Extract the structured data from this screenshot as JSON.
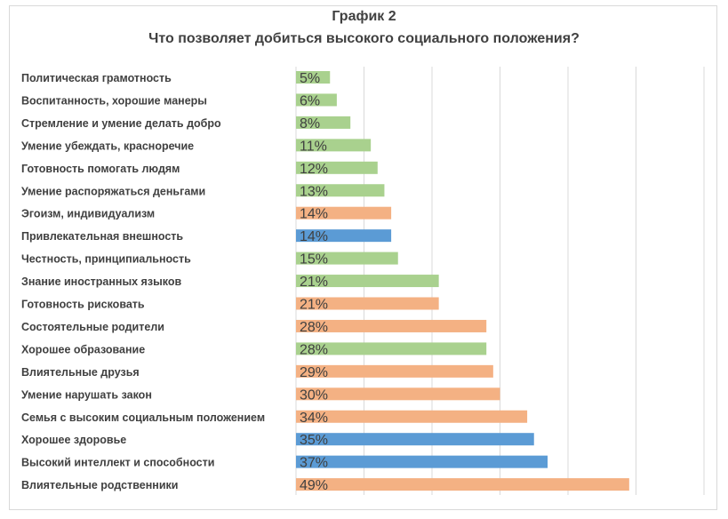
{
  "chart_data": {
    "type": "bar",
    "orientation": "horizontal",
    "title": "График 2",
    "subtitle": "Что позволяет добиться высокого социального положения?",
    "xlim": [
      0,
      60
    ],
    "grid": true,
    "legend": "none",
    "colors": {
      "green": "#a9d18e",
      "orange": "#f4b183",
      "blue": "#5b9bd5",
      "grid": "#d9d9d9",
      "text": "#404040"
    },
    "categories": [
      "Политическая грамотность",
      "Воспитанность, хорошие манеры",
      "Стремление и умение делать добро",
      "Умение убеждать, красноречие",
      "Готовность помогать людям",
      "Умение распоряжаться деньгами",
      "Эгоизм, индивидуализм",
      "Привлекательная внешность",
      "Честность, принципиальность",
      "Знание иностранных языков",
      "Готовность рисковать",
      "Состоятельные родители",
      "Хорошее образование",
      "Влиятельные друзья",
      "Умение нарушать закон",
      "Семья с высоким социальным положением",
      "Хорошее здоровье",
      "Высокий интеллект и способности",
      "Влиятельные родственники"
    ],
    "values": [
      5,
      6,
      8,
      11,
      12,
      13,
      14,
      14,
      15,
      21,
      21,
      28,
      28,
      29,
      30,
      34,
      35,
      37,
      49
    ],
    "labels": [
      "5%",
      "6%",
      "8%",
      "11%",
      "12%",
      "13%",
      "14%",
      "14%",
      "15%",
      "21%",
      "21%",
      "28%",
      "28%",
      "29%",
      "30%",
      "34%",
      "35%",
      "37%",
      "49%"
    ],
    "bar_colors": [
      "green",
      "green",
      "green",
      "green",
      "green",
      "green",
      "orange",
      "blue",
      "green",
      "green",
      "orange",
      "orange",
      "green",
      "orange",
      "orange",
      "orange",
      "blue",
      "blue",
      "orange"
    ]
  }
}
